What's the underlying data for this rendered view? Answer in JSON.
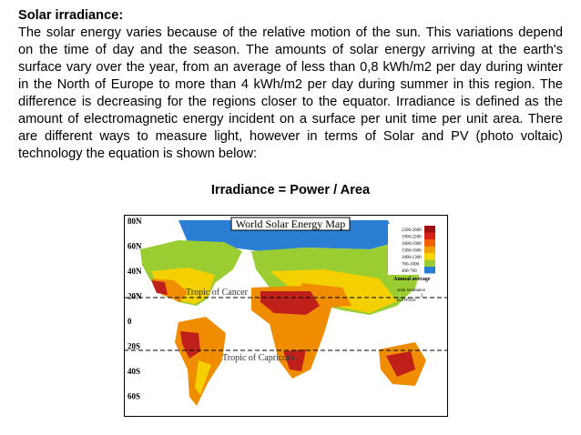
{
  "heading": "Solar irradiance:",
  "paragraph_lines": [
    "The solar energy varies because of the relative motion of the sun. This variations depend",
    "on the time of day and the season. The amounts of solar energy arriving at the earth's",
    "surface vary over the year, from an average of less than 0,8 kWh/m2 per day during winter",
    "in the North of Europe to more than 4 kWh/m2 per day during summer in this region. The",
    "difference is decreasing for the regions closer to the equator. Irradiance is defined as the",
    "amount of electromagnetic energy incident on a surface per unit time per unit area. There",
    "are different ways to measure light, however in terms of Solar and PV (photo voltaic)",
    "technology the equation is shown below:"
  ],
  "equation": "Irradiance = Power / Area",
  "map": {
    "title": "World Solar Energy Map",
    "latitudes": [
      "80N",
      "60N",
      "40N",
      "20N",
      "0",
      "20S",
      "40S",
      "60S"
    ],
    "tropic_cancer": "Tropic of Cancer",
    "tropic_capricorn": "Tropic of Capricorn",
    "legend": [
      "2200-2600",
      "1900-2200",
      "1600-1900",
      "1300-1600",
      "1000-1300",
      "700-1000",
      "400-700"
    ],
    "legend_caption": [
      "Annual average",
      "solar irradiance",
      "in kWh/m",
      "2"
    ]
  }
}
